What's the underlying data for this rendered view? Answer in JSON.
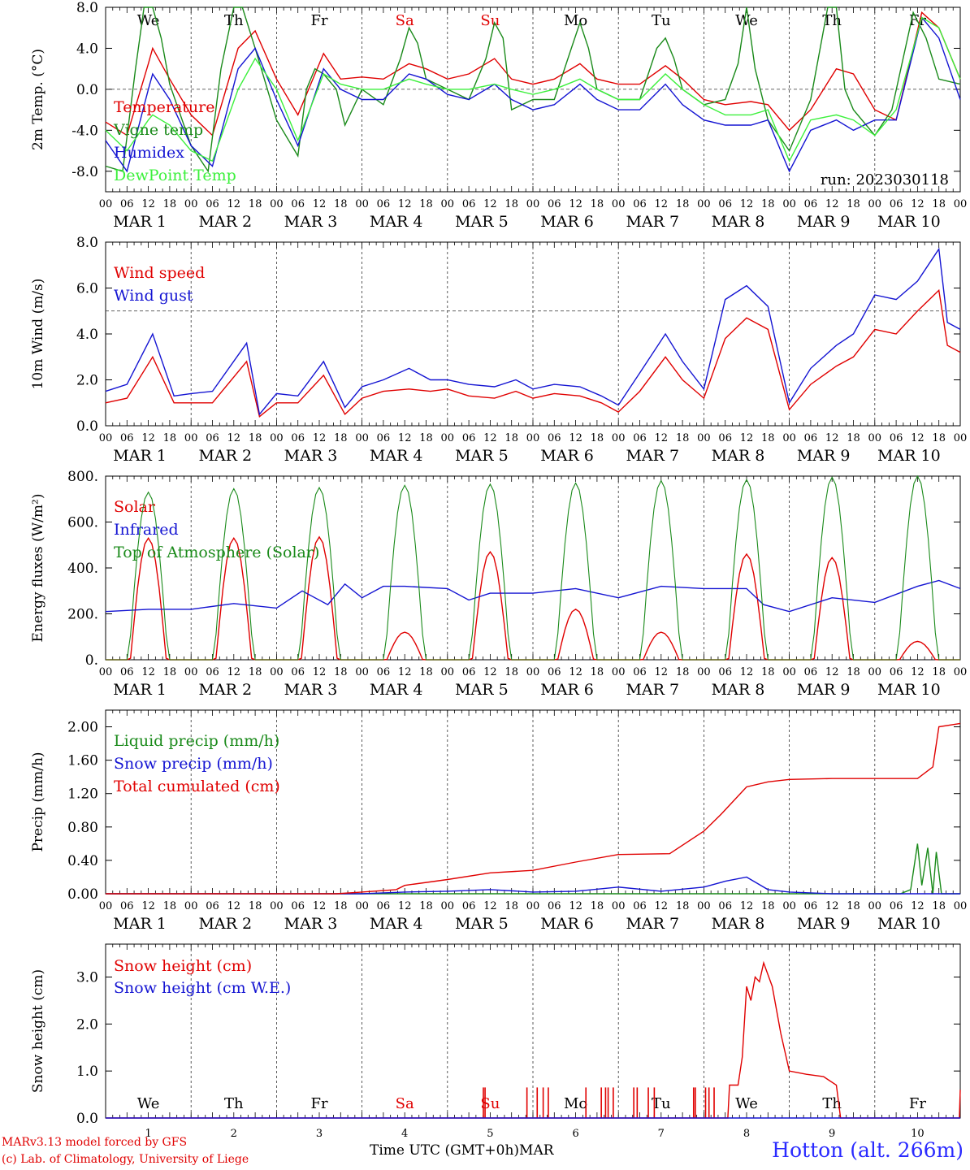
{
  "footer": {
    "credit_line1": "MARv3.13 model forced by GFS",
    "credit_line2": "(c) Lab. of Climatology, University of Liege",
    "station": "Hotton (alt. 266m)",
    "x_title": "Time UTC (GMT+0h)",
    "x_month": "MAR"
  },
  "chart_data": [
    {
      "type": "line",
      "ylabel": "2m Temp. (°C)",
      "ylim": [
        -10,
        8
      ],
      "yticks": [
        "8.0",
        "4.0",
        "0.0",
        "-4.0",
        "-8.0"
      ],
      "ytick_values": [
        8,
        4,
        0,
        -4,
        -8
      ],
      "ref_line": 0,
      "annotation": "run: 2023030118",
      "day_labels": [
        "We",
        "Th",
        "Fr",
        "Sa",
        "Su",
        "Mo",
        "Tu",
        "We",
        "Th",
        "Fr"
      ],
      "weekend_days": [
        3,
        4
      ],
      "x_hour_ticks": [
        "00",
        "06",
        "12",
        "18"
      ],
      "x_day_labels": [
        "MAR 1",
        "MAR 2",
        "MAR 3",
        "MAR 4",
        "MAR 5",
        "MAR 6",
        "MAR 7",
        "MAR 8",
        "MAR 9",
        "MAR 10"
      ],
      "series": [
        {
          "name": "Temperature",
          "color": "#e00000",
          "x": [
            0,
            0.25,
            0.5,
            0.55,
            0.75,
            1.0,
            1.25,
            1.55,
            1.75,
            2.0,
            2.25,
            2.55,
            2.75,
            3.0,
            3.25,
            3.55,
            3.75,
            4.0,
            4.25,
            4.55,
            4.75,
            5.0,
            5.25,
            5.55,
            5.75,
            6.0,
            6.25,
            6.55,
            6.75,
            7.0,
            7.25,
            7.55,
            7.75,
            8.0,
            8.25,
            8.55,
            8.75,
            9.0,
            9.25,
            9.55,
            9.75,
            10.0
          ],
          "y": [
            -3.2,
            -4.5,
            2.5,
            4.0,
            1.0,
            -2.5,
            -4.5,
            4.0,
            5.7,
            1.0,
            -2.5,
            3.5,
            1.0,
            1.2,
            1.0,
            2.5,
            2.0,
            1.0,
            1.5,
            3.0,
            1.0,
            0.5,
            1.0,
            2.5,
            1.0,
            0.5,
            0.5,
            2.3,
            1.0,
            -1.0,
            -1.5,
            -1.2,
            -1.5,
            -4.0,
            -2.0,
            2.0,
            1.5,
            -2.0,
            -3.0,
            7.5,
            6.0,
            1.0
          ]
        },
        {
          "name": "Vigne temp",
          "color": "#1a8a1a",
          "x": [
            0,
            0.2,
            0.35,
            0.45,
            0.55,
            0.65,
            0.75,
            1.0,
            1.2,
            1.35,
            1.5,
            1.6,
            1.75,
            2.0,
            2.25,
            2.35,
            2.45,
            2.55,
            2.7,
            2.8,
            3.0,
            3.25,
            3.45,
            3.55,
            3.65,
            3.75,
            4.0,
            4.25,
            4.45,
            4.55,
            4.65,
            4.75,
            5.0,
            5.25,
            5.45,
            5.55,
            5.65,
            5.75,
            6.0,
            6.25,
            6.45,
            6.55,
            6.65,
            6.75,
            7.0,
            7.25,
            7.4,
            7.5,
            7.6,
            7.75,
            8.0,
            8.25,
            8.45,
            8.55,
            8.65,
            8.75,
            9.0,
            9.2,
            9.45,
            9.6,
            9.75,
            10.0
          ],
          "y": [
            -7.5,
            -8.0,
            2.0,
            8.0,
            8.0,
            5.0,
            0.5,
            -5.5,
            -8.0,
            2.0,
            8.0,
            8.0,
            4.0,
            -3.0,
            -6.5,
            0.0,
            2.0,
            1.5,
            0.0,
            -3.5,
            0.0,
            -1.5,
            3.0,
            6.0,
            4.5,
            1.0,
            0.0,
            -1.0,
            3.0,
            6.5,
            5.0,
            -2.0,
            -1.0,
            -1.0,
            4.0,
            6.5,
            4.0,
            0.0,
            -1.0,
            -1.0,
            4.0,
            5.0,
            3.0,
            0.0,
            -1.5,
            -1.0,
            2.5,
            8.0,
            2.0,
            -3.0,
            -6.0,
            -1.0,
            8.0,
            8.0,
            0.0,
            -2.0,
            -4.5,
            -2.0,
            7.5,
            5.0,
            1.0,
            0.5
          ]
        },
        {
          "name": "Humidex",
          "color": "#1414d2",
          "x": [
            0,
            0.25,
            0.5,
            0.55,
            0.75,
            1.0,
            1.25,
            1.55,
            1.75,
            2.0,
            2.25,
            2.55,
            2.75,
            3.0,
            3.25,
            3.55,
            3.75,
            4.0,
            4.25,
            4.55,
            4.75,
            5.0,
            5.25,
            5.55,
            5.75,
            6.0,
            6.25,
            6.55,
            6.75,
            7.0,
            7.25,
            7.55,
            7.75,
            8.0,
            8.25,
            8.55,
            8.75,
            9.0,
            9.25,
            9.55,
            9.75,
            10.0
          ],
          "y": [
            -5.0,
            -8.0,
            0.0,
            1.5,
            -1.0,
            -5.5,
            -7.5,
            2.0,
            4.0,
            -1.0,
            -5.5,
            2.0,
            0.0,
            -1.0,
            -1.0,
            1.5,
            1.0,
            -0.5,
            -1.0,
            0.5,
            -1.0,
            -2.0,
            -1.5,
            0.5,
            -1.0,
            -2.0,
            -2.0,
            0.5,
            -1.5,
            -3.0,
            -3.5,
            -3.5,
            -3.0,
            -8.0,
            -4.0,
            -3.0,
            -4.0,
            -3.0,
            -3.0,
            7.0,
            5.0,
            -1.0
          ]
        },
        {
          "name": "DewPoint Temp",
          "color": "#3cf03c",
          "x": [
            0,
            0.25,
            0.5,
            0.55,
            0.75,
            1.0,
            1.25,
            1.55,
            1.75,
            2.0,
            2.25,
            2.55,
            2.75,
            3.0,
            3.25,
            3.55,
            3.75,
            4.0,
            4.25,
            4.55,
            4.75,
            5.0,
            5.25,
            5.55,
            5.75,
            6.0,
            6.25,
            6.55,
            6.75,
            7.0,
            7.25,
            7.55,
            7.75,
            8.0,
            8.25,
            8.55,
            8.75,
            9.0,
            9.25,
            9.55,
            9.75,
            10.0
          ],
          "y": [
            -4.0,
            -6.0,
            -3.0,
            -2.5,
            -3.5,
            -6.0,
            -7.0,
            0.0,
            3.0,
            0.0,
            -5.0,
            1.5,
            0.5,
            0.0,
            0.0,
            1.0,
            0.5,
            0.0,
            0.0,
            0.5,
            0.0,
            -0.5,
            0.0,
            1.0,
            0.0,
            -1.0,
            -1.0,
            1.5,
            0.0,
            -1.5,
            -2.5,
            -2.5,
            -2.0,
            -7.0,
            -3.0,
            -2.5,
            -3.0,
            -4.5,
            -2.0,
            7.0,
            6.0,
            1.0
          ]
        }
      ]
    },
    {
      "type": "line",
      "ylabel": "10m Wind (m/s)",
      "ylim": [
        0,
        8
      ],
      "yticks": [
        "8.0",
        "6.0",
        "4.0",
        "2.0",
        "0.0"
      ],
      "ytick_values": [
        8,
        6,
        4,
        2,
        0
      ],
      "ref_line": 5,
      "x_hour_ticks": [
        "00",
        "06",
        "12",
        "18"
      ],
      "x_day_labels": [
        "MAR 1",
        "MAR 2",
        "MAR 3",
        "MAR 4",
        "MAR 5",
        "MAR 6",
        "MAR 7",
        "MAR 8",
        "MAR 9",
        "MAR 10"
      ],
      "series": [
        {
          "name": "Wind speed",
          "color": "#e00000",
          "x": [
            0,
            0.25,
            0.55,
            0.8,
            1.0,
            1.25,
            1.65,
            1.8,
            2.0,
            2.25,
            2.55,
            2.8,
            3.0,
            3.25,
            3.55,
            3.8,
            4.0,
            4.25,
            4.55,
            4.8,
            5.0,
            5.25,
            5.55,
            5.8,
            6.0,
            6.25,
            6.55,
            6.75,
            7.0,
            7.25,
            7.5,
            7.75,
            8.0,
            8.25,
            8.55,
            8.75,
            9.0,
            9.25,
            9.5,
            9.75,
            9.85,
            10.0
          ],
          "y": [
            1.0,
            1.2,
            3.0,
            1.0,
            1.0,
            1.0,
            2.8,
            0.4,
            1.0,
            1.0,
            2.2,
            0.5,
            1.2,
            1.5,
            1.6,
            1.5,
            1.6,
            1.3,
            1.2,
            1.5,
            1.2,
            1.4,
            1.3,
            1.0,
            0.6,
            1.5,
            3.0,
            2.0,
            1.2,
            3.8,
            4.7,
            4.2,
            0.7,
            1.8,
            2.6,
            3.0,
            4.2,
            4.0,
            5.0,
            5.9,
            3.5,
            3.2
          ]
        },
        {
          "name": "Wind gust",
          "color": "#1414d2",
          "x": [
            0,
            0.25,
            0.55,
            0.8,
            1.0,
            1.25,
            1.65,
            1.8,
            2.0,
            2.25,
            2.55,
            2.8,
            3.0,
            3.25,
            3.55,
            3.8,
            4.0,
            4.25,
            4.55,
            4.8,
            5.0,
            5.25,
            5.55,
            5.8,
            6.0,
            6.25,
            6.55,
            6.75,
            7.0,
            7.25,
            7.5,
            7.75,
            8.0,
            8.25,
            8.55,
            8.75,
            9.0,
            9.25,
            9.5,
            9.75,
            9.85,
            10.0
          ],
          "y": [
            1.5,
            1.8,
            4.0,
            1.3,
            1.4,
            1.5,
            3.6,
            0.5,
            1.4,
            1.3,
            2.8,
            0.8,
            1.7,
            2.0,
            2.5,
            2.0,
            2.0,
            1.8,
            1.7,
            2.0,
            1.6,
            1.8,
            1.7,
            1.3,
            0.9,
            2.3,
            4.0,
            2.8,
            1.6,
            5.5,
            6.1,
            5.2,
            1.0,
            2.5,
            3.5,
            4.0,
            5.7,
            5.5,
            6.3,
            7.7,
            4.5,
            4.2
          ]
        }
      ]
    },
    {
      "type": "line",
      "ylabel": "Energy fluxes (W/m²)",
      "ylim": [
        0,
        800
      ],
      "yticks": [
        "800.",
        "600.",
        "400.",
        "200.",
        "0."
      ],
      "ytick_values": [
        800,
        600,
        400,
        200,
        0
      ],
      "x_hour_ticks": [
        "00",
        "06",
        "12",
        "18"
      ],
      "x_day_labels": [
        "MAR 1",
        "MAR 2",
        "MAR 3",
        "MAR 4",
        "MAR 5",
        "MAR 6",
        "MAR 7",
        "MAR 8",
        "MAR 9",
        "MAR 10"
      ],
      "daily_peaks": {
        "Solar": [
          530,
          530,
          535,
          120,
          470,
          220,
          120,
          460,
          445,
          80
        ],
        "Top of Atmosphere (Solar)": [
          730,
          745,
          750,
          760,
          765,
          770,
          780,
          785,
          795,
          800
        ]
      },
      "series": [
        {
          "name": "Solar",
          "color": "#e00000"
        },
        {
          "name": "Infrared",
          "color": "#1414d2",
          "x": [
            0,
            0.5,
            1.0,
            1.5,
            2.0,
            2.3,
            2.6,
            2.8,
            3.0,
            3.25,
            3.5,
            4.0,
            4.25,
            4.5,
            5.0,
            5.5,
            6.0,
            6.5,
            7.0,
            7.5,
            7.7,
            8.0,
            8.5,
            9.0,
            9.5,
            9.75,
            10.0
          ],
          "y": [
            210,
            220,
            220,
            245,
            225,
            300,
            240,
            330,
            270,
            320,
            320,
            310,
            260,
            290,
            290,
            310,
            270,
            320,
            310,
            310,
            240,
            210,
            270,
            250,
            320,
            345,
            310
          ]
        }
      ]
    },
    {
      "type": "line",
      "ylabel": "Precip (mm/h)",
      "ylim": [
        0,
        2.2
      ],
      "yticks": [
        "2.00",
        "1.60",
        "1.20",
        "0.80",
        "0.40",
        "0.00"
      ],
      "ytick_values": [
        2.0,
        1.6,
        1.2,
        0.8,
        0.4,
        0.0
      ],
      "x_hour_ticks": [
        "00",
        "06",
        "12",
        "18"
      ],
      "x_day_labels": [
        "MAR 1",
        "MAR 2",
        "MAR 3",
        "MAR 4",
        "MAR 5",
        "MAR 6",
        "MAR 7",
        "MAR 8",
        "MAR 9",
        "MAR 10"
      ],
      "series": [
        {
          "name": "Liquid precip (mm/h)",
          "color": "#1a8a1a",
          "x": [
            0,
            9.3,
            9.42,
            9.5,
            9.55,
            9.62,
            9.68,
            9.72,
            9.78,
            9.82,
            10.0
          ],
          "y": [
            0,
            0,
            0.05,
            0.6,
            0.1,
            0.55,
            0.0,
            0.5,
            0.0,
            0.0,
            0.0
          ]
        },
        {
          "name": "Snow precip (mm/h)",
          "color": "#1414d2",
          "x": [
            0,
            3.0,
            3.5,
            4.0,
            4.5,
            5.0,
            5.5,
            6.0,
            6.5,
            7.0,
            7.25,
            7.5,
            7.75,
            8.0,
            8.5,
            10.0
          ],
          "y": [
            0,
            0,
            0.02,
            0.03,
            0.05,
            0.02,
            0.03,
            0.08,
            0.03,
            0.08,
            0.15,
            0.2,
            0.05,
            0.02,
            0.0,
            0.0
          ]
        },
        {
          "name": "Total cumulated (cm)",
          "color": "#e00000",
          "x": [
            0,
            2.7,
            3.0,
            3.4,
            3.5,
            4.0,
            4.5,
            5.0,
            5.5,
            6.0,
            6.6,
            7.0,
            7.2,
            7.5,
            7.75,
            8.0,
            8.5,
            9.0,
            9.5,
            9.68,
            9.75,
            10.0
          ],
          "y": [
            0,
            0,
            0.02,
            0.05,
            0.1,
            0.17,
            0.25,
            0.28,
            0.38,
            0.47,
            0.48,
            0.75,
            0.95,
            1.28,
            1.34,
            1.37,
            1.38,
            1.38,
            1.38,
            1.52,
            2.0,
            2.04
          ]
        }
      ]
    },
    {
      "type": "line",
      "ylabel": "Snow height (cm)",
      "ylim": [
        0,
        3.7
      ],
      "yticks": [
        "3.0",
        "2.0",
        "1.0",
        "0.0"
      ],
      "ytick_values": [
        3.0,
        2.0,
        1.0,
        0.0
      ],
      "day_labels": [
        "We",
        "Th",
        "Fr",
        "Sa",
        "Su",
        "Mo",
        "Tu",
        "We",
        "Th",
        "Fr"
      ],
      "weekend_days": [
        3,
        4
      ],
      "x_day_numbers": [
        "1",
        "2",
        "3",
        "4",
        "5",
        "6",
        "7",
        "8",
        "9",
        "10"
      ],
      "series": [
        {
          "name": "Snow height (cm)",
          "color": "#e00000",
          "x": [
            0,
            7.28,
            7.3,
            7.4,
            7.45,
            7.5,
            7.55,
            7.6,
            7.65,
            7.7,
            7.8,
            7.9,
            8.0,
            8.2,
            8.4,
            8.55,
            8.6,
            9.99,
            10.0
          ],
          "y": [
            0,
            0,
            0.7,
            0.7,
            1.3,
            2.8,
            2.5,
            3.0,
            2.9,
            3.3,
            2.8,
            1.8,
            1.0,
            0.93,
            0.88,
            0.7,
            0,
            0,
            0.6
          ],
          "spikes": [
            4.42,
            4.44,
            4.93,
            5.05,
            5.12,
            5.18,
            5.62,
            5.8,
            5.85,
            5.88,
            5.94,
            6.18,
            6.22,
            6.35,
            6.42,
            6.88,
            6.9,
            7.02,
            7.06,
            7.12
          ],
          "spike_value": 0.65
        },
        {
          "name": "Snow height (cm W.E.)",
          "color": "#1414d2",
          "x": [
            0,
            10.0
          ],
          "y": [
            0,
            0
          ]
        }
      ]
    }
  ]
}
